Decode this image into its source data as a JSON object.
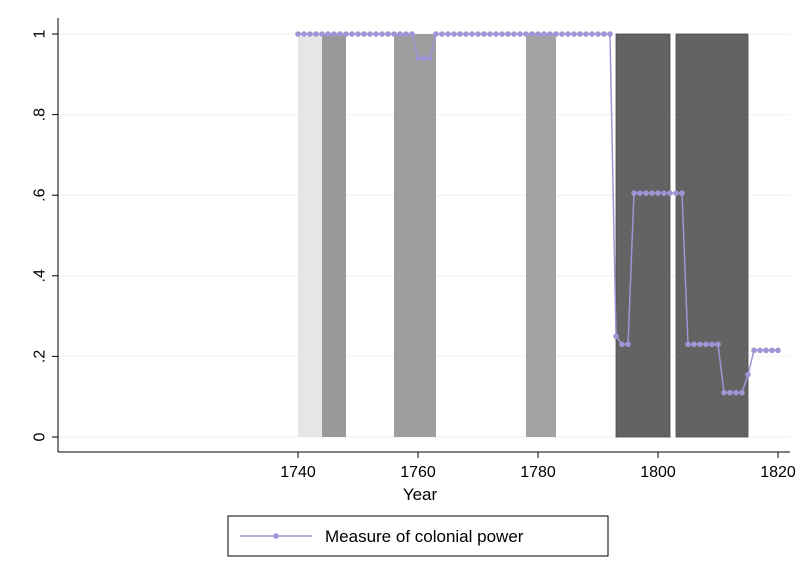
{
  "chart_data": {
    "type": "line",
    "xlabel": "Year",
    "ylabel": "",
    "xlim": [
      1700,
      1822
    ],
    "ylim": [
      0,
      1
    ],
    "xticks": [
      1740,
      1760,
      1780,
      1800,
      1820
    ],
    "xtick_labels": [
      "1740",
      "1760",
      "1780",
      "1800",
      "1820"
    ],
    "yticks": [
      0,
      0.2,
      0.4,
      0.6,
      0.8,
      1
    ],
    "ytick_labels": [
      "0",
      ".2",
      ".4",
      ".6",
      ".8",
      "1"
    ],
    "grid": "horizontal",
    "legend_position": "bottom",
    "shaded_periods": [
      {
        "start": 1740,
        "end": 1744,
        "color": "#e6e6e6"
      },
      {
        "start": 1744,
        "end": 1748,
        "color": "#999999"
      },
      {
        "start": 1756,
        "end": 1763,
        "color": "#9e9e9e"
      },
      {
        "start": 1778,
        "end": 1783,
        "color": "#a3a3a3"
      },
      {
        "start": 1793,
        "end": 1802,
        "color": "#636363"
      },
      {
        "start": 1803,
        "end": 1815,
        "color": "#636363"
      }
    ],
    "series": [
      {
        "name": "Measure of colonial power",
        "color": "#9d96d6",
        "x": [
          1740,
          1741,
          1742,
          1743,
          1744,
          1745,
          1746,
          1747,
          1748,
          1749,
          1750,
          1751,
          1752,
          1753,
          1754,
          1755,
          1756,
          1757,
          1758,
          1759,
          1760,
          1761,
          1762,
          1763,
          1764,
          1765,
          1766,
          1767,
          1768,
          1769,
          1770,
          1771,
          1772,
          1773,
          1774,
          1775,
          1776,
          1777,
          1778,
          1779,
          1780,
          1781,
          1782,
          1783,
          1784,
          1785,
          1786,
          1787,
          1788,
          1789,
          1790,
          1791,
          1792,
          1793,
          1794,
          1795,
          1796,
          1797,
          1798,
          1799,
          1800,
          1801,
          1802,
          1803,
          1804,
          1805,
          1806,
          1807,
          1808,
          1809,
          1810,
          1811,
          1812,
          1813,
          1814,
          1815,
          1816,
          1817,
          1818,
          1819,
          1820
        ],
        "y": [
          1,
          1,
          1,
          1,
          1,
          1,
          1,
          1,
          1,
          1,
          1,
          1,
          1,
          1,
          1,
          1,
          1,
          1,
          1,
          1,
          0.94,
          0.94,
          0.94,
          1,
          1,
          1,
          1,
          1,
          1,
          1,
          1,
          1,
          1,
          1,
          1,
          1,
          1,
          1,
          1,
          1,
          1,
          1,
          1,
          1,
          1,
          1,
          1,
          1,
          1,
          1,
          1,
          1,
          1,
          0.25,
          0.23,
          0.23,
          0.605,
          0.605,
          0.605,
          0.605,
          0.605,
          0.605,
          0.605,
          0.605,
          0.605,
          0.23,
          0.23,
          0.23,
          0.23,
          0.23,
          0.23,
          0.11,
          0.11,
          0.11,
          0.11,
          0.155,
          0.215,
          0.215,
          0.215,
          0.215,
          0.215
        ]
      }
    ]
  }
}
